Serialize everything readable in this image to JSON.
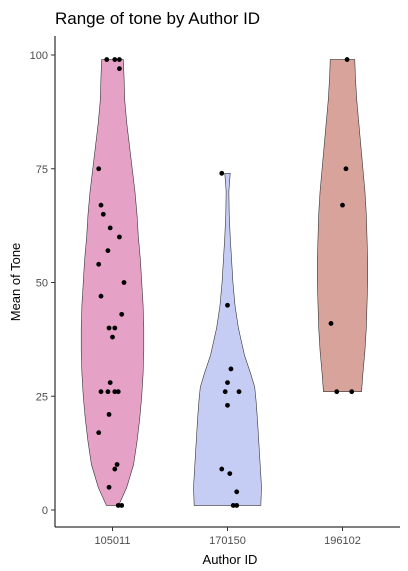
{
  "chart_data": {
    "type": "violin",
    "title": "Range of tone by Author ID",
    "xlabel": "Author ID",
    "ylabel": "Mean of Tone",
    "categories": [
      "105011",
      "170150",
      "196102"
    ],
    "ylim": [
      0,
      100
    ],
    "yticks": [
      0,
      25,
      50,
      75,
      100
    ],
    "grid": false,
    "legend": "none",
    "series": [
      {
        "category": "105011",
        "color": "#e5a1c6",
        "density": [
          [
            1,
            0.18
          ],
          [
            5,
            0.42
          ],
          [
            10,
            0.62
          ],
          [
            15,
            0.72
          ],
          [
            20,
            0.8
          ],
          [
            25,
            0.86
          ],
          [
            30,
            0.9
          ],
          [
            35,
            0.92
          ],
          [
            40,
            0.92
          ],
          [
            45,
            0.9
          ],
          [
            50,
            0.86
          ],
          [
            55,
            0.82
          ],
          [
            60,
            0.76
          ],
          [
            65,
            0.72
          ],
          [
            70,
            0.66
          ],
          [
            75,
            0.58
          ],
          [
            80,
            0.5
          ],
          [
            85,
            0.42
          ],
          [
            90,
            0.36
          ],
          [
            95,
            0.34
          ],
          [
            99,
            0.32
          ]
        ],
        "points": [
          {
            "x": -0.05,
            "y": 99
          },
          {
            "x": 0.02,
            "y": 99
          },
          {
            "x": 0.06,
            "y": 99
          },
          {
            "x": 0.06,
            "y": 97
          },
          {
            "x": -0.12,
            "y": 75
          },
          {
            "x": -0.1,
            "y": 67
          },
          {
            "x": -0.08,
            "y": 65
          },
          {
            "x": -0.02,
            "y": 62
          },
          {
            "x": 0.06,
            "y": 60
          },
          {
            "x": -0.04,
            "y": 57
          },
          {
            "x": -0.12,
            "y": 54
          },
          {
            "x": 0.1,
            "y": 50
          },
          {
            "x": -0.1,
            "y": 47
          },
          {
            "x": 0.08,
            "y": 43
          },
          {
            "x": 0.02,
            "y": 40
          },
          {
            "x": -0.03,
            "y": 40
          },
          {
            "x": 0.0,
            "y": 38
          },
          {
            "x": -0.02,
            "y": 28
          },
          {
            "x": -0.1,
            "y": 26
          },
          {
            "x": -0.04,
            "y": 26
          },
          {
            "x": 0.02,
            "y": 26
          },
          {
            "x": 0.05,
            "y": 26
          },
          {
            "x": -0.03,
            "y": 21
          },
          {
            "x": -0.12,
            "y": 17
          },
          {
            "x": 0.04,
            "y": 10
          },
          {
            "x": 0.02,
            "y": 9
          },
          {
            "x": -0.03,
            "y": 5
          },
          {
            "x": 0.05,
            "y": 1
          },
          {
            "x": 0.08,
            "y": 1
          }
        ]
      },
      {
        "category": "170150",
        "color": "#c6cdf4",
        "density": [
          [
            1,
            0.98
          ],
          [
            5,
            1.0
          ],
          [
            10,
            0.96
          ],
          [
            15,
            0.92
          ],
          [
            20,
            0.88
          ],
          [
            24,
            0.84
          ],
          [
            27,
            0.8
          ],
          [
            30,
            0.68
          ],
          [
            34,
            0.5
          ],
          [
            40,
            0.32
          ],
          [
            45,
            0.22
          ],
          [
            50,
            0.16
          ],
          [
            55,
            0.12
          ],
          [
            60,
            0.08
          ],
          [
            65,
            0.05
          ],
          [
            70,
            0.04
          ],
          [
            74,
            0.08
          ]
        ],
        "points": [
          {
            "x": -0.05,
            "y": 74
          },
          {
            "x": 0.0,
            "y": 45
          },
          {
            "x": 0.03,
            "y": 31
          },
          {
            "x": 0.0,
            "y": 28
          },
          {
            "x": 0.1,
            "y": 26
          },
          {
            "x": -0.02,
            "y": 26
          },
          {
            "x": 0.0,
            "y": 23
          },
          {
            "x": -0.05,
            "y": 9
          },
          {
            "x": 0.02,
            "y": 8
          },
          {
            "x": 0.08,
            "y": 4
          },
          {
            "x": 0.05,
            "y": 1
          },
          {
            "x": 0.08,
            "y": 1
          }
        ]
      },
      {
        "category": "196102",
        "color": "#d8a39a",
        "density": [
          [
            26,
            0.56
          ],
          [
            30,
            0.6
          ],
          [
            35,
            0.66
          ],
          [
            40,
            0.7
          ],
          [
            45,
            0.72
          ],
          [
            50,
            0.74
          ],
          [
            55,
            0.74
          ],
          [
            60,
            0.72
          ],
          [
            65,
            0.7
          ],
          [
            70,
            0.66
          ],
          [
            75,
            0.6
          ],
          [
            80,
            0.54
          ],
          [
            85,
            0.48
          ],
          [
            90,
            0.42
          ],
          [
            95,
            0.38
          ],
          [
            99,
            0.36
          ]
        ],
        "points": [
          {
            "x": 0.04,
            "y": 99
          },
          {
            "x": 0.03,
            "y": 75
          },
          {
            "x": 0.0,
            "y": 67
          },
          {
            "x": -0.1,
            "y": 41
          },
          {
            "x": -0.05,
            "y": 26
          },
          {
            "x": 0.08,
            "y": 26
          }
        ]
      }
    ]
  }
}
